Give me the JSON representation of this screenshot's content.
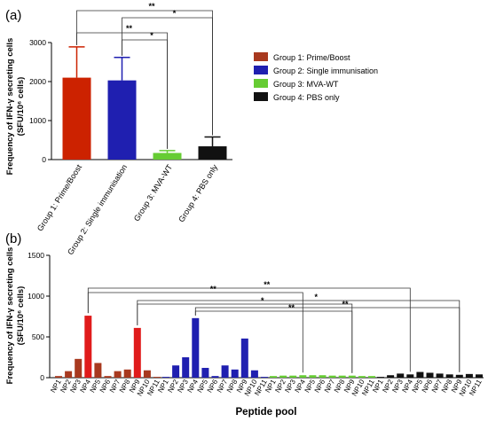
{
  "chart_data": [
    {
      "type": "bar",
      "panel": "(a)",
      "ylabel_lines": [
        "Frequency of IFN-γ secreting cells",
        "(SFU/10⁶ cells)"
      ],
      "ylim": [
        0,
        3000
      ],
      "yticks": [
        0,
        1000,
        2000,
        3000
      ],
      "categories": [
        "Group 1: Prime/Boost",
        "Group 2: Single immunisation",
        "Group 3: MVA-WT",
        "Group 4: PBS only"
      ],
      "values": [
        2100,
        2030,
        170,
        340
      ],
      "errors": [
        790,
        590,
        60,
        240
      ],
      "colors": [
        "#cc2200",
        "#1f1fb0",
        "#66cc33",
        "#111111"
      ],
      "legend": [
        {
          "label": "Group 1: Prime/Boost",
          "color": "#a8391f"
        },
        {
          "label": "Group 2: Single immunisation",
          "color": "#1f1fb0"
        },
        {
          "label": "Group 3: MVA-WT",
          "color": "#66cc33"
        },
        {
          "label": "Group 4: PBS only",
          "color": "#111111"
        }
      ],
      "significance": [
        {
          "from": 0,
          "to": 3,
          "label": "**"
        },
        {
          "from": 1,
          "to": 3,
          "label": "*"
        },
        {
          "from": 0,
          "to": 2,
          "label": "**"
        },
        {
          "from": 1,
          "to": 2,
          "label": "*"
        }
      ],
      "grid": false
    },
    {
      "type": "bar",
      "panel": "(b)",
      "ylabel_lines": [
        "Frequency of IFN-γ secreting cells",
        "(SFU/10⁶ cells)"
      ],
      "xlabel": "Peptide pool",
      "ylim": [
        0,
        1500
      ],
      "yticks": [
        0,
        500,
        1000,
        1500
      ],
      "categories": [
        "NP1",
        "NP2",
        "NP3",
        "NP4",
        "NP5",
        "NP6",
        "NP7",
        "NP8",
        "NP9",
        "NP10",
        "NP11"
      ],
      "series": [
        {
          "group": "Group 1: Prime/Boost",
          "color": "#a8391f",
          "highlight_color": "#e01b1b",
          "values": [
            20,
            80,
            230,
            760,
            180,
            20,
            80,
            100,
            610,
            90,
            10
          ]
        },
        {
          "group": "Group 2: Single immunisation",
          "color": "#1f1fb0",
          "values": [
            10,
            150,
            250,
            730,
            120,
            20,
            150,
            100,
            480,
            90,
            10
          ]
        },
        {
          "group": "Group 3: MVA-WT",
          "color": "#66cc33",
          "values": [
            20,
            25,
            25,
            30,
            30,
            30,
            25,
            25,
            25,
            20,
            20
          ]
        },
        {
          "group": "Group 4: PBS only",
          "color": "#111111",
          "values": [
            10,
            30,
            50,
            40,
            70,
            60,
            50,
            40,
            35,
            45,
            40
          ]
        }
      ],
      "significance": [
        {
          "from_group": 0,
          "from_pool": "NP4",
          "to_group": 3,
          "to_pool": "NP4",
          "label": "**"
        },
        {
          "from_group": 0,
          "from_pool": "NP4",
          "to_group": 2,
          "to_pool": "NP4",
          "label": "**"
        },
        {
          "from_group": 0,
          "from_pool": "NP9",
          "to_group": 3,
          "to_pool": "NP9",
          "label": "*"
        },
        {
          "from_group": 0,
          "from_pool": "NP9",
          "to_group": 2,
          "to_pool": "NP9",
          "label": "*"
        },
        {
          "from_group": 1,
          "from_pool": "NP4",
          "to_group": 3,
          "to_pool": "NP9",
          "label": "**"
        },
        {
          "from_group": 1,
          "from_pool": "NP4",
          "to_group": 2,
          "to_pool": "NP9",
          "label": "**"
        }
      ],
      "grid": false
    }
  ]
}
